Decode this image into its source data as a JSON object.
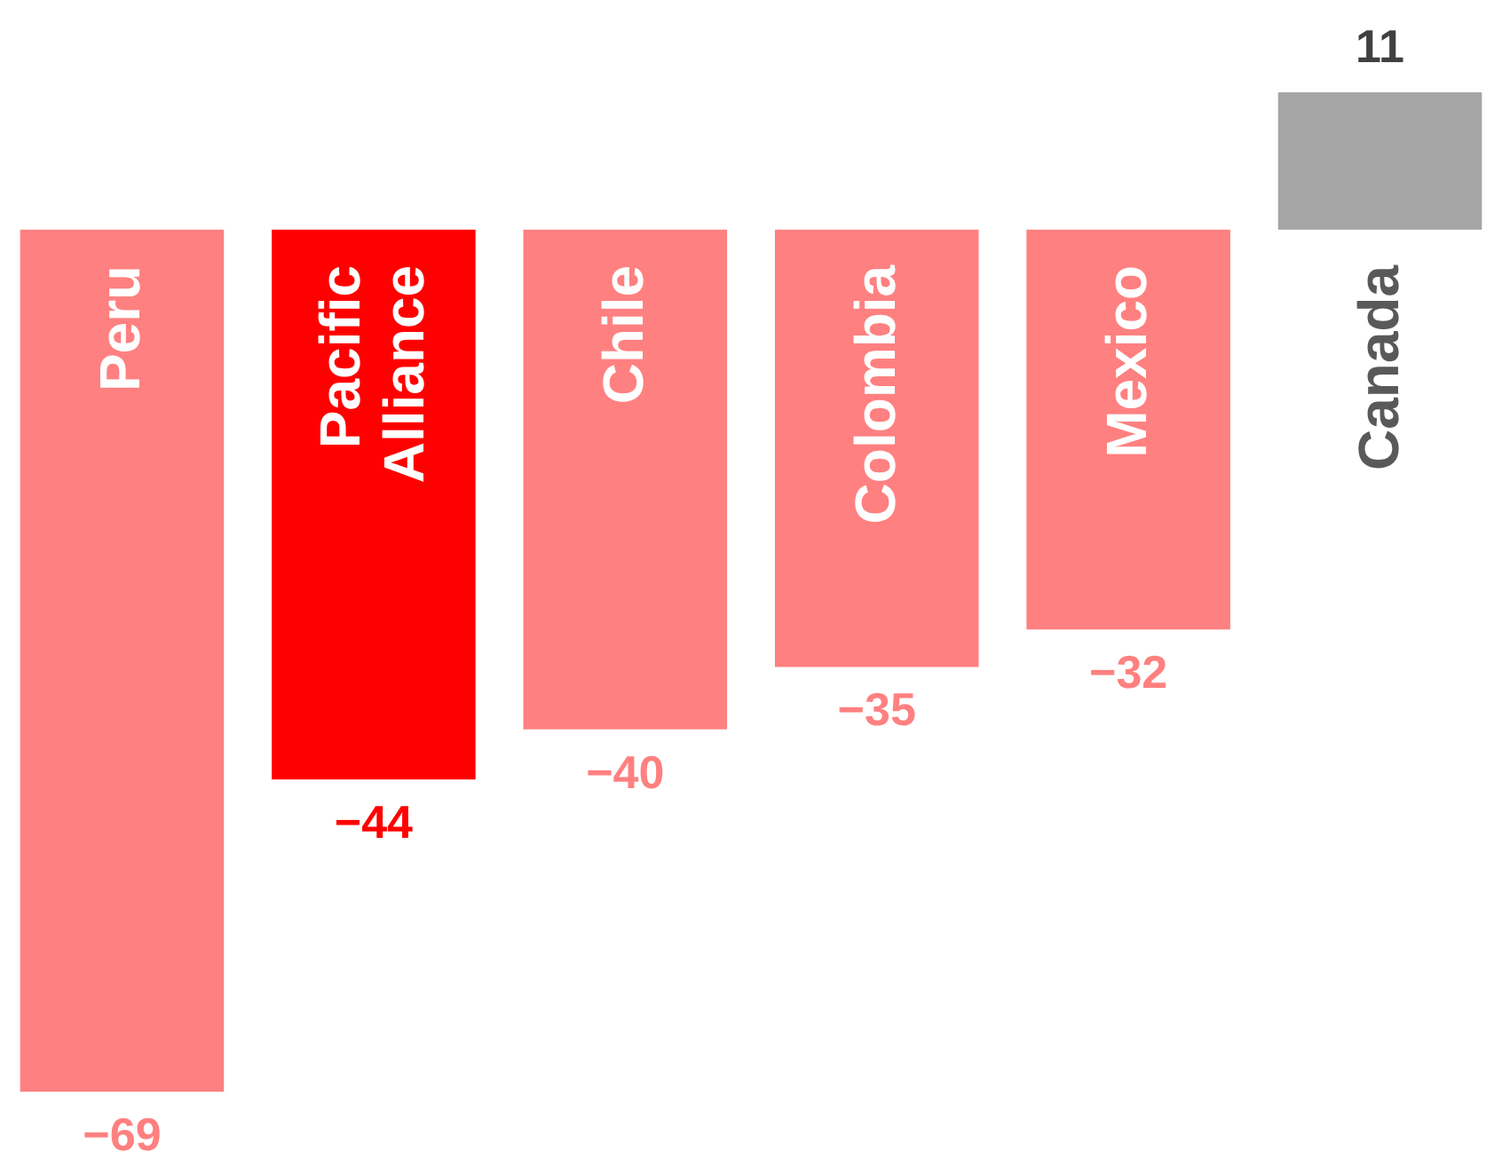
{
  "chart_data": {
    "type": "bar",
    "categories": [
      "Peru",
      "Pacific Alliance",
      "Chile",
      "Colombia",
      "Mexico",
      "Canada"
    ],
    "values": [
      -69,
      -44,
      -40,
      -35,
      -32,
      11
    ],
    "colors": [
      "#ff8080",
      "#ff0000",
      "#ff8080",
      "#ff8080",
      "#ff8080",
      "#a6a6a6"
    ],
    "data_labels": true
  }
}
